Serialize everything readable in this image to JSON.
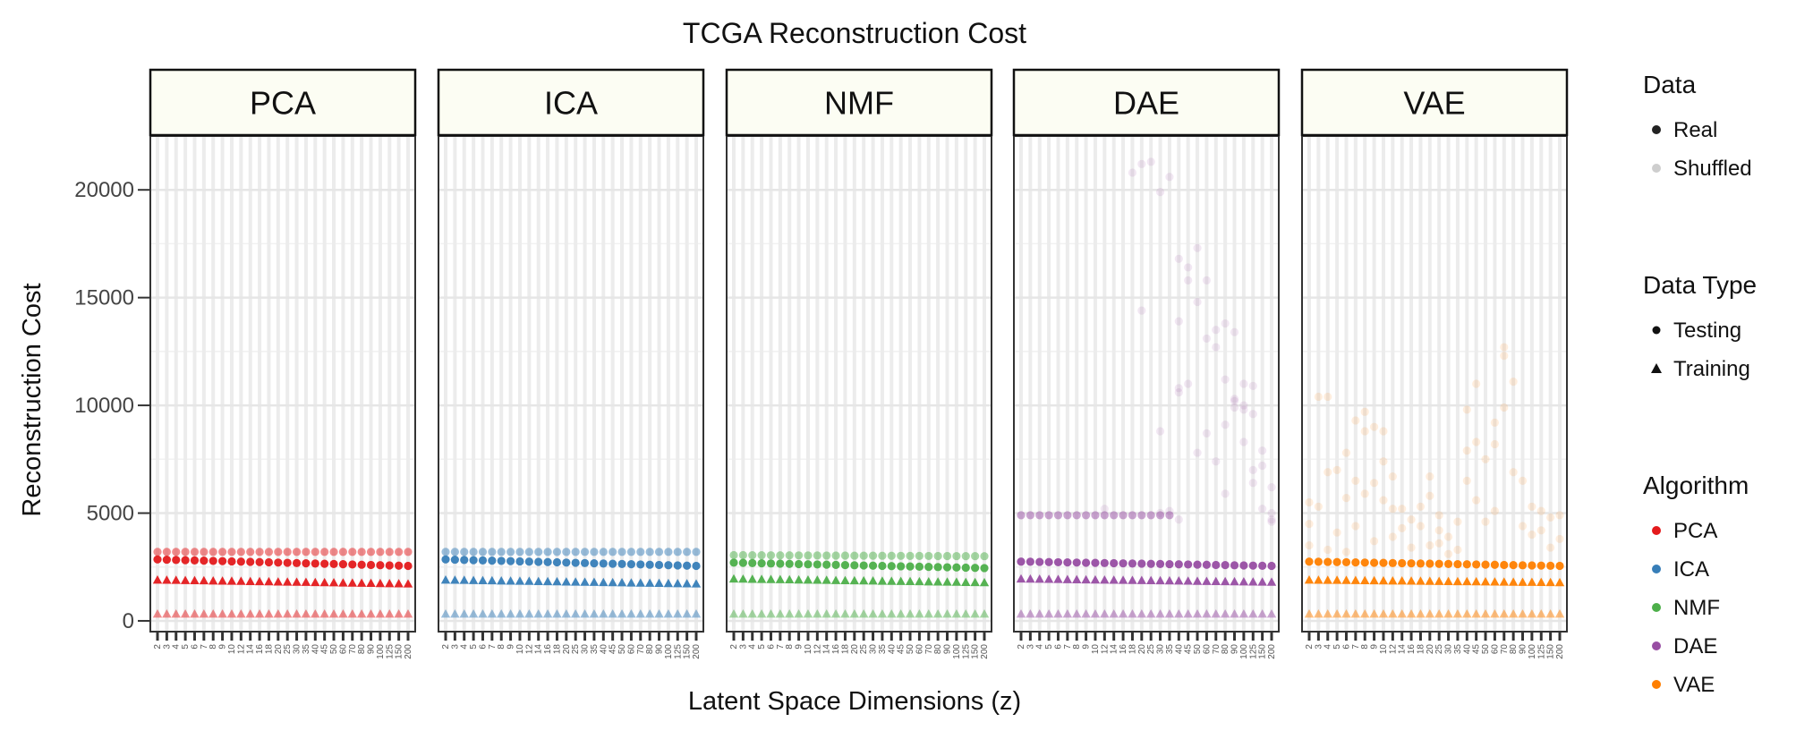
{
  "chart_data": {
    "type": "scatter",
    "title": "TCGA Reconstruction Cost",
    "xlabel": "Latent Space Dimensions (z)",
    "ylabel": "Reconstruction Cost",
    "ylim": [
      -500,
      22500
    ],
    "yticks": [
      0,
      5000,
      10000,
      15000,
      20000
    ],
    "grid": true,
    "legend_position": "right",
    "x_categories": [
      "2",
      "3",
      "4",
      "5",
      "6",
      "7",
      "8",
      "9",
      "10",
      "12",
      "14",
      "16",
      "18",
      "20",
      "25",
      "30",
      "35",
      "40",
      "45",
      "50",
      "60",
      "70",
      "80",
      "90",
      "100",
      "125",
      "150",
      "200"
    ],
    "colors": {
      "PCA": "#E41A1C",
      "ICA": "#377EB8",
      "NMF": "#4DAF4A",
      "DAE": "#984EA3",
      "VAE": "#FF7F00"
    },
    "panels": [
      {
        "algorithm": "PCA",
        "series": [
          {
            "data": "Real",
            "data_type": "Testing",
            "start": 2850,
            "end": 2550
          },
          {
            "data": "Real",
            "data_type": "Training",
            "start": 1900,
            "end": 1720
          },
          {
            "data": "Shuffled",
            "data_type": "Testing",
            "start": 3200,
            "end": 3200
          },
          {
            "data": "Shuffled",
            "data_type": "Training",
            "start": 320,
            "end": 320
          }
        ]
      },
      {
        "algorithm": "ICA",
        "series": [
          {
            "data": "Real",
            "data_type": "Testing",
            "start": 2850,
            "end": 2550
          },
          {
            "data": "Real",
            "data_type": "Training",
            "start": 1900,
            "end": 1720
          },
          {
            "data": "Shuffled",
            "data_type": "Testing",
            "start": 3200,
            "end": 3200
          },
          {
            "data": "Shuffled",
            "data_type": "Training",
            "start": 320,
            "end": 320
          }
        ]
      },
      {
        "algorithm": "NMF",
        "series": [
          {
            "data": "Real",
            "data_type": "Testing",
            "start": 2700,
            "end": 2450
          },
          {
            "data": "Real",
            "data_type": "Training",
            "start": 1950,
            "end": 1780
          },
          {
            "data": "Shuffled",
            "data_type": "Testing",
            "start": 3050,
            "end": 3000
          },
          {
            "data": "Shuffled",
            "data_type": "Training",
            "start": 320,
            "end": 320
          }
        ]
      },
      {
        "algorithm": "DAE",
        "series": [
          {
            "data": "Real",
            "data_type": "Testing",
            "start": 2750,
            "end": 2550
          },
          {
            "data": "Real",
            "data_type": "Training",
            "start": 1950,
            "end": 1800
          },
          {
            "data": "Shuffled",
            "data_type": "Training",
            "start": 320,
            "end": 320
          },
          {
            "data": "Shuffled",
            "data_type": "Testing",
            "start": 4900,
            "end": 4900,
            "until": "35"
          }
        ],
        "scatter": [
          [
            "18",
            20800
          ],
          [
            "20",
            21200
          ],
          [
            "25",
            21300
          ],
          [
            "30",
            19900
          ],
          [
            "35",
            20600
          ],
          [
            "20",
            14400
          ],
          [
            "30",
            8800
          ],
          [
            "40",
            16800
          ],
          [
            "45",
            16400
          ],
          [
            "45",
            15800
          ],
          [
            "50",
            17300
          ],
          [
            "50",
            14800
          ],
          [
            "60",
            15800
          ],
          [
            "60",
            13100
          ],
          [
            "70",
            13500
          ],
          [
            "70",
            12700
          ],
          [
            "80",
            13800
          ],
          [
            "80",
            11200
          ],
          [
            "90",
            13400
          ],
          [
            "90",
            10300
          ],
          [
            "100",
            11000
          ],
          [
            "100",
            10000
          ],
          [
            "125",
            10900
          ],
          [
            "125",
            9600
          ],
          [
            "150",
            7900
          ],
          [
            "150",
            7200
          ],
          [
            "200",
            6200
          ],
          [
            "200",
            5000
          ],
          [
            "40",
            13900
          ],
          [
            "40",
            10800
          ],
          [
            "40",
            10600
          ],
          [
            "45",
            11000
          ],
          [
            "50",
            7800
          ],
          [
            "60",
            8700
          ],
          [
            "70",
            7400
          ],
          [
            "80",
            9100
          ],
          [
            "90",
            9900
          ],
          [
            "100",
            8300
          ],
          [
            "125",
            7000
          ],
          [
            "150",
            5200
          ],
          [
            "200",
            4600
          ],
          [
            "200",
            4700
          ],
          [
            "30",
            5000
          ],
          [
            "35",
            5100
          ],
          [
            "40",
            4700
          ],
          [
            "80",
            5900
          ],
          [
            "90",
            10200
          ],
          [
            "100",
            9800
          ],
          [
            "12",
            5200
          ],
          [
            "125",
            6400
          ]
        ]
      },
      {
        "algorithm": "VAE",
        "series": [
          {
            "data": "Real",
            "data_type": "Testing",
            "start": 2750,
            "end": 2550
          },
          {
            "data": "Real",
            "data_type": "Training",
            "start": 1900,
            "end": 1780
          },
          {
            "data": "Shuffled",
            "data_type": "Training",
            "start": 320,
            "end": 320
          }
        ],
        "scatter": [
          [
            "2",
            5500
          ],
          [
            "2",
            4500
          ],
          [
            "2",
            3500
          ],
          [
            "3",
            10400
          ],
          [
            "3",
            5300
          ],
          [
            "4",
            10400
          ],
          [
            "4",
            6900
          ],
          [
            "4",
            3300
          ],
          [
            "5",
            7000
          ],
          [
            "5",
            4100
          ],
          [
            "6",
            7800
          ],
          [
            "6",
            5700
          ],
          [
            "6",
            3200
          ],
          [
            "7",
            9300
          ],
          [
            "7",
            6500
          ],
          [
            "7",
            4400
          ],
          [
            "8",
            9700
          ],
          [
            "8",
            8800
          ],
          [
            "8",
            5900
          ],
          [
            "9",
            9000
          ],
          [
            "9",
            6400
          ],
          [
            "9",
            3700
          ],
          [
            "10",
            8800
          ],
          [
            "10",
            7400
          ],
          [
            "10",
            5600
          ],
          [
            "12",
            6700
          ],
          [
            "12",
            5200
          ],
          [
            "12",
            3900
          ],
          [
            "14",
            5200
          ],
          [
            "14",
            4300
          ],
          [
            "16",
            4700
          ],
          [
            "16",
            3400
          ],
          [
            "18",
            5300
          ],
          [
            "18",
            4400
          ],
          [
            "20",
            6700
          ],
          [
            "20",
            5800
          ],
          [
            "20",
            3500
          ],
          [
            "25",
            4900
          ],
          [
            "25",
            4200
          ],
          [
            "25",
            3600
          ],
          [
            "30",
            3900
          ],
          [
            "30",
            3100
          ],
          [
            "35",
            4600
          ],
          [
            "35",
            3300
          ],
          [
            "40",
            9800
          ],
          [
            "40",
            7900
          ],
          [
            "40",
            6500
          ],
          [
            "45",
            11000
          ],
          [
            "45",
            8300
          ],
          [
            "45",
            5600
          ],
          [
            "50",
            7500
          ],
          [
            "50",
            4600
          ],
          [
            "60",
            9200
          ],
          [
            "60",
            8200
          ],
          [
            "60",
            5100
          ],
          [
            "70",
            12700
          ],
          [
            "70",
            12300
          ],
          [
            "70",
            9900
          ],
          [
            "80",
            11100
          ],
          [
            "80",
            6900
          ],
          [
            "90",
            6500
          ],
          [
            "90",
            4400
          ],
          [
            "100",
            5300
          ],
          [
            "100",
            4000
          ],
          [
            "125",
            5100
          ],
          [
            "125",
            4200
          ],
          [
            "150",
            4800
          ],
          [
            "150",
            3400
          ],
          [
            "200",
            4900
          ],
          [
            "200",
            3800
          ]
        ]
      }
    ],
    "legend": {
      "data": {
        "title": "Data",
        "items": [
          "Real",
          "Shuffled"
        ]
      },
      "data_type": {
        "title": "Data Type",
        "items": [
          "Testing",
          "Training"
        ]
      },
      "algorithm": {
        "title": "Algorithm",
        "items": [
          "PCA",
          "ICA",
          "NMF",
          "DAE",
          "VAE"
        ]
      }
    }
  }
}
